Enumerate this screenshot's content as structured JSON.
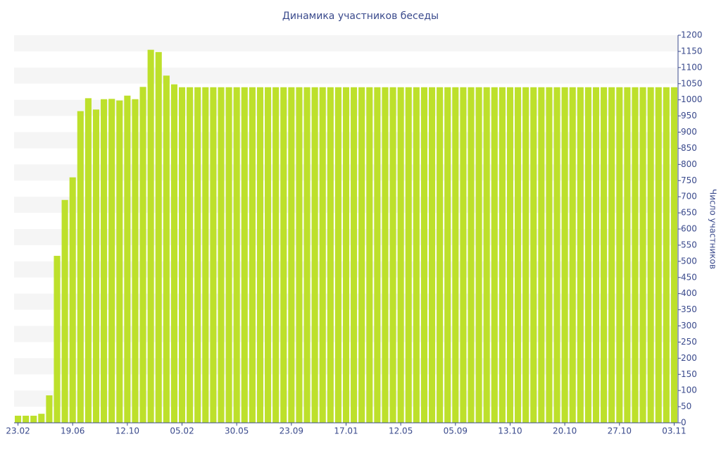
{
  "chart_data": {
    "type": "bar",
    "title": "Динамика участников беседы",
    "y_label": "Число участников",
    "categories": [
      "23.02",
      null,
      null,
      null,
      null,
      null,
      null,
      "19.06",
      null,
      null,
      null,
      null,
      null,
      null,
      "12.10",
      null,
      null,
      null,
      null,
      null,
      null,
      "05.02",
      null,
      null,
      null,
      null,
      null,
      null,
      "30.05",
      null,
      null,
      null,
      null,
      null,
      null,
      "23.09",
      null,
      null,
      null,
      null,
      null,
      null,
      "17.01",
      null,
      null,
      null,
      null,
      null,
      null,
      "12.05",
      null,
      null,
      null,
      null,
      null,
      null,
      "05.09",
      null,
      null,
      null,
      null,
      null,
      null,
      "13.10",
      null,
      null,
      null,
      null,
      null,
      null,
      "20.10",
      null,
      null,
      null,
      null,
      null,
      null,
      "27.10",
      null,
      null,
      null,
      null,
      null,
      null,
      "03.11"
    ],
    "values": [
      22,
      22,
      22,
      28,
      85,
      517,
      690,
      760,
      965,
      1005,
      970,
      1002,
      1003,
      998,
      1013,
      1002,
      1040,
      1155,
      1148,
      1075,
      1048,
      1039,
      1039,
      1039,
      1039,
      1039,
      1039,
      1039,
      1039,
      1039,
      1039,
      1039,
      1039,
      1039,
      1039,
      1039,
      1039,
      1039,
      1039,
      1039,
      1039,
      1039,
      1039,
      1039,
      1039,
      1039,
      1039,
      1039,
      1039,
      1039,
      1039,
      1039,
      1039,
      1039,
      1039,
      1039,
      1039,
      1039,
      1039,
      1039,
      1039,
      1039,
      1039,
      1039,
      1039,
      1039,
      1039,
      1039,
      1039,
      1039,
      1039,
      1039,
      1039,
      1039,
      1039,
      1039,
      1039,
      1039,
      1039,
      1039,
      1039,
      1039,
      1039,
      1039,
      1039
    ],
    "color": "#bde02b",
    "ylim": [
      0,
      1200
    ],
    "yticks": [
      0,
      50,
      100,
      150,
      200,
      250,
      300,
      350,
      400,
      450,
      500,
      550,
      600,
      650,
      700,
      750,
      800,
      850,
      900,
      950,
      1000,
      1050,
      1100,
      1150,
      1200
    ],
    "grid": true
  }
}
